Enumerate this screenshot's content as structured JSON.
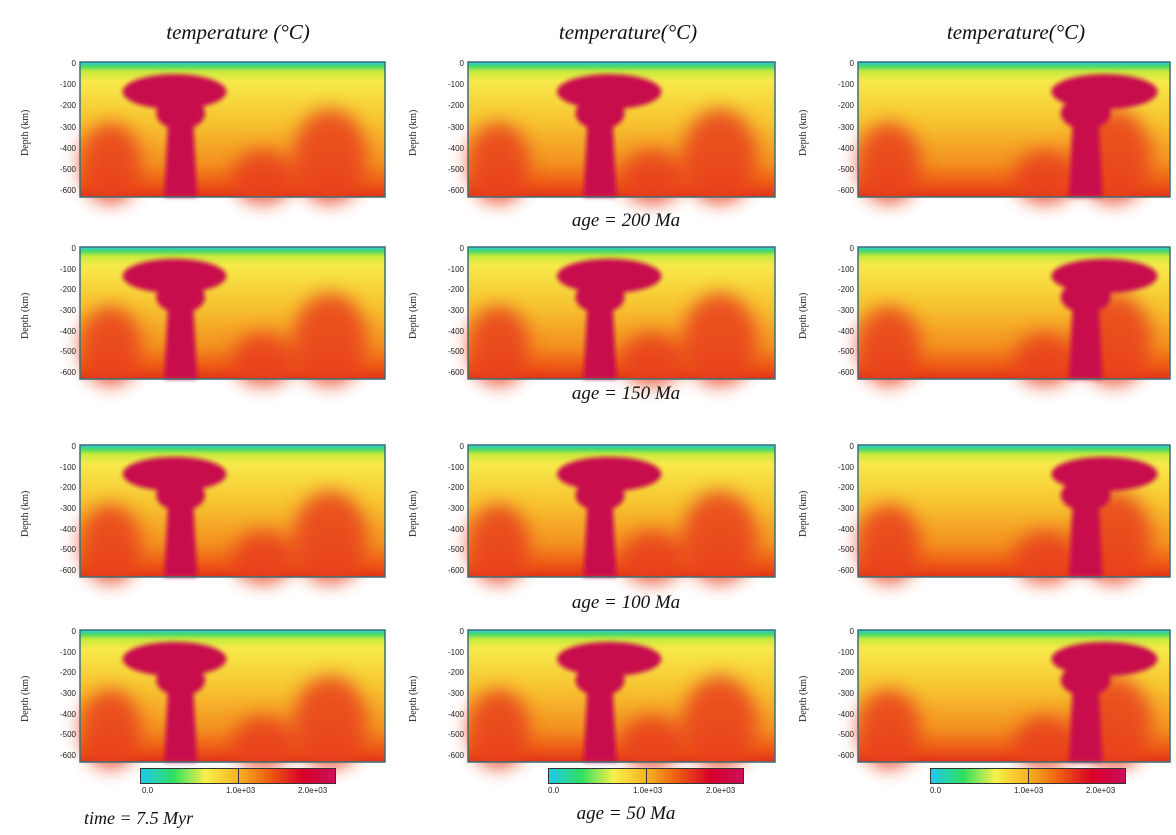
{
  "column_titles": [
    "temperature (°C)",
    "temperature(°C)",
    "temperature(°C)"
  ],
  "age_captions": [
    "age = 200 Ma",
    "age = 150 Ma",
    "age = 100 Ma",
    "age = 50 Ma"
  ],
  "time_caption": "time = 7.5 Myr",
  "colorbar_labels": [
    "0.0",
    "1.0e+03",
    "2.0e+03"
  ],
  "chart_data": {
    "type": "heatmap",
    "quantity": "temperature (°C)",
    "ylabel": "Depth (km)",
    "yticks": [
      "0",
      "-100",
      "-200",
      "-300",
      "-400",
      "-500",
      "-600"
    ],
    "ylim": [
      -650,
      0
    ],
    "colorbar": {
      "min": 0,
      "max": 2000,
      "ticks": [
        "0.0",
        "1.0e+03",
        "2.0e+03"
      ],
      "colors": [
        "#1ec8f0",
        "#30e060",
        "#f7f04a",
        "#f7b420",
        "#ee5a12",
        "#d9002a",
        "#c8105a"
      ]
    },
    "rows": [
      "age = 200 Ma",
      "age = 150 Ma",
      "age = 100 Ma",
      "age = 50 Ma"
    ],
    "time": "time = 7.5 Myr"
  }
}
